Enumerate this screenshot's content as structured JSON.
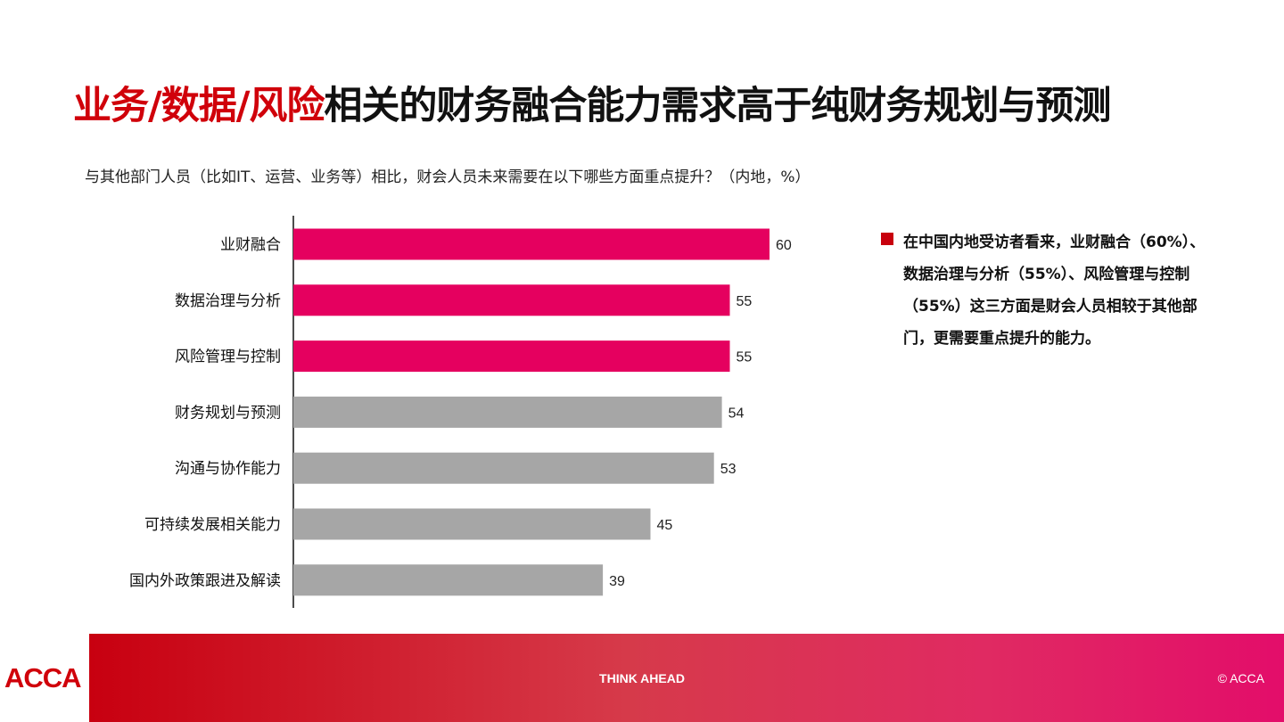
{
  "title": {
    "highlight": "业务/数据/风险",
    "rest": "相关的财务融合能力需求高于纯财务规划与预测"
  },
  "subtitle": "与其他部门人员（比如IT、运营、业务等）相比，财会人员未来需要在以下哪些方面重点提升？（内地，%）",
  "chart_data": {
    "type": "bar",
    "orientation": "horizontal",
    "categories": [
      "业财融合",
      "数据治理与分析",
      "风险管理与控制",
      "财务规划与预测",
      "沟通与协作能力",
      "可持续发展相关能力",
      "国内外政策跟进及解读"
    ],
    "values": [
      60,
      55,
      55,
      54,
      53,
      45,
      39
    ],
    "highlight_count": 3,
    "colors": {
      "highlight": "#e5005f",
      "normal": "#a6a6a6"
    },
    "xlim": [
      0,
      60
    ],
    "grid": false,
    "legend": "none"
  },
  "note": "在中国内地受访者看来，业财融合（60%）、数据治理与分析（55%）、风险管理与控制（55%）这三方面是财会人员相较于其他部门，更需要重点提升的能力。",
  "footer": {
    "logo": "ACCA",
    "tagline": "THINK AHEAD",
    "copyright": "© ACCA"
  }
}
